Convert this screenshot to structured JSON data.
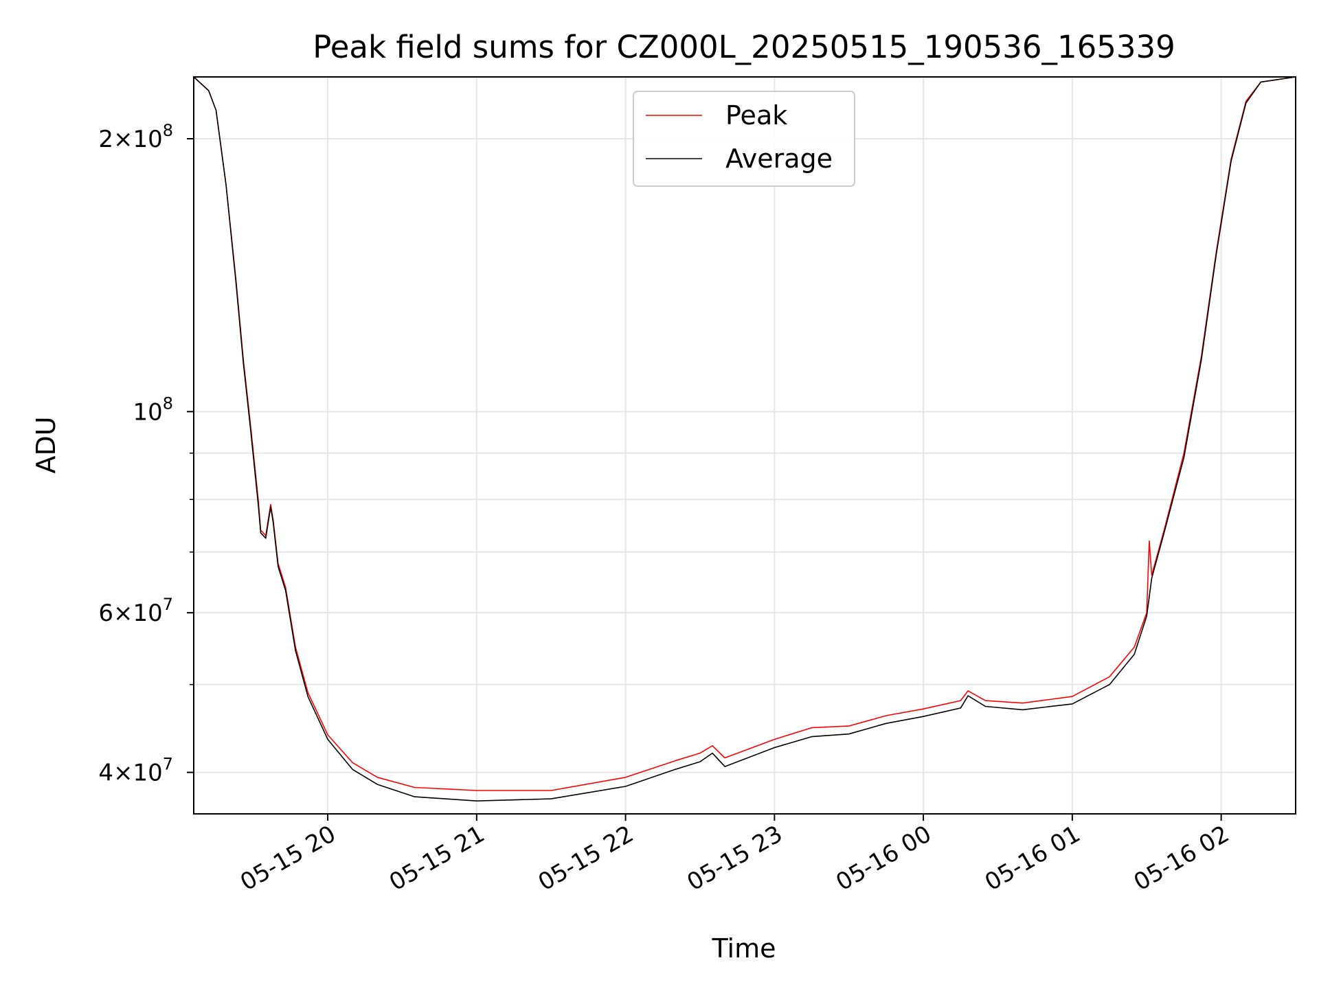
{
  "chart_data": {
    "type": "line",
    "title": "Peak field sums for CZ000L_20250515_190536_165339",
    "xlabel": "Time",
    "ylabel": "ADU",
    "y_scale": "log",
    "ylim": [
      36000000,
      234000000
    ],
    "xlim": [
      "2025-05-15 19:06",
      "2025-05-16 02:30"
    ],
    "x_ticks": [
      {
        "value": "2025-05-15 20:00",
        "label": "05-15 20"
      },
      {
        "value": "2025-05-15 21:00",
        "label": "05-15 21"
      },
      {
        "value": "2025-05-15 22:00",
        "label": "05-15 22"
      },
      {
        "value": "2025-05-15 23:00",
        "label": "05-15 23"
      },
      {
        "value": "2025-05-16 00:00",
        "label": "05-16 00"
      },
      {
        "value": "2025-05-16 01:00",
        "label": "05-16 01"
      },
      {
        "value": "2025-05-16 02:00",
        "label": "05-16 02"
      }
    ],
    "y_ticks_major": [
      {
        "value": 40000000,
        "mantissa": "4",
        "exponent": "7"
      },
      {
        "value": 60000000,
        "mantissa": "6",
        "exponent": "7"
      },
      {
        "value": 100000000,
        "mantissa": "",
        "exponent": "8"
      },
      {
        "value": 200000000,
        "mantissa": "2",
        "exponent": "8"
      }
    ],
    "y_ticks_minor": [
      50000000,
      70000000,
      80000000,
      90000000
    ],
    "grid": true,
    "legend": "upper center",
    "series": [
      {
        "name": "Peak",
        "color": "#ff0000",
        "points": [
          [
            "2025-05-15 19:06",
            234000000
          ],
          [
            "2025-05-15 19:12",
            226000000
          ],
          [
            "2025-05-15 19:15",
            215000000
          ],
          [
            "2025-05-15 19:19",
            178000000
          ],
          [
            "2025-05-15 19:23",
            140000000
          ],
          [
            "2025-05-15 19:26",
            114000000
          ],
          [
            "2025-05-15 19:29",
            96000000
          ],
          [
            "2025-05-15 19:32",
            80000000
          ],
          [
            "2025-05-15 19:33",
            74000000
          ],
          [
            "2025-05-15 19:35",
            73000000
          ],
          [
            "2025-05-15 19:37",
            79000000
          ],
          [
            "2025-05-15 19:38",
            76000000
          ],
          [
            "2025-05-15 19:40",
            68000000
          ],
          [
            "2025-05-15 19:43",
            64000000
          ],
          [
            "2025-05-15 19:47",
            55000000
          ],
          [
            "2025-05-15 19:52",
            49000000
          ],
          [
            "2025-05-15 20:00",
            44000000
          ],
          [
            "2025-05-15 20:10",
            41000000
          ],
          [
            "2025-05-15 20:20",
            39500000
          ],
          [
            "2025-05-15 20:35",
            38500000
          ],
          [
            "2025-05-15 21:00",
            38200000
          ],
          [
            "2025-05-15 21:30",
            38200000
          ],
          [
            "2025-05-15 22:00",
            39500000
          ],
          [
            "2025-05-15 22:20",
            41200000
          ],
          [
            "2025-05-15 22:30",
            42000000
          ],
          [
            "2025-05-15 22:35",
            42800000
          ],
          [
            "2025-05-15 22:40",
            41500000
          ],
          [
            "2025-05-15 23:00",
            43500000
          ],
          [
            "2025-05-15 23:15",
            44800000
          ],
          [
            "2025-05-15 23:30",
            45000000
          ],
          [
            "2025-05-15 23:45",
            46200000
          ],
          [
            "2025-05-16 00:00",
            47000000
          ],
          [
            "2025-05-16 00:15",
            48000000
          ],
          [
            "2025-05-16 00:18",
            49200000
          ],
          [
            "2025-05-16 00:25",
            48000000
          ],
          [
            "2025-05-16 00:40",
            47700000
          ],
          [
            "2025-05-16 01:00",
            48500000
          ],
          [
            "2025-05-16 01:15",
            51000000
          ],
          [
            "2025-05-16 01:25",
            55000000
          ],
          [
            "2025-05-16 01:30",
            60000000
          ],
          [
            "2025-05-16 01:31",
            72000000
          ],
          [
            "2025-05-16 01:32",
            66000000
          ],
          [
            "2025-05-16 01:37",
            74000000
          ],
          [
            "2025-05-16 01:45",
            90000000
          ],
          [
            "2025-05-16 01:52",
            115000000
          ],
          [
            "2025-05-16 01:58",
            150000000
          ],
          [
            "2025-05-16 02:04",
            190000000
          ],
          [
            "2025-05-16 02:10",
            220000000
          ],
          [
            "2025-05-16 02:16",
            231000000
          ],
          [
            "2025-05-16 02:30",
            234000000
          ]
        ]
      },
      {
        "name": "Average",
        "color": "#000000",
        "points": [
          [
            "2025-05-15 19:06",
            234000000
          ],
          [
            "2025-05-15 19:12",
            226000000
          ],
          [
            "2025-05-15 19:15",
            215000000
          ],
          [
            "2025-05-15 19:19",
            178000000
          ],
          [
            "2025-05-15 19:23",
            139000000
          ],
          [
            "2025-05-15 19:26",
            113000000
          ],
          [
            "2025-05-15 19:29",
            95000000
          ],
          [
            "2025-05-15 19:32",
            79000000
          ],
          [
            "2025-05-15 19:33",
            73500000
          ],
          [
            "2025-05-15 19:35",
            72500000
          ],
          [
            "2025-05-15 19:37",
            78500000
          ],
          [
            "2025-05-15 19:38",
            75500000
          ],
          [
            "2025-05-15 19:40",
            67500000
          ],
          [
            "2025-05-15 19:43",
            63500000
          ],
          [
            "2025-05-15 19:47",
            54500000
          ],
          [
            "2025-05-15 19:52",
            48500000
          ],
          [
            "2025-05-15 20:00",
            43500000
          ],
          [
            "2025-05-15 20:10",
            40300000
          ],
          [
            "2025-05-15 20:20",
            38800000
          ],
          [
            "2025-05-15 20:35",
            37600000
          ],
          [
            "2025-05-15 21:00",
            37200000
          ],
          [
            "2025-05-15 21:30",
            37400000
          ],
          [
            "2025-05-15 22:00",
            38600000
          ],
          [
            "2025-05-15 22:20",
            40300000
          ],
          [
            "2025-05-15 22:30",
            41100000
          ],
          [
            "2025-05-15 22:35",
            42000000
          ],
          [
            "2025-05-15 22:40",
            40600000
          ],
          [
            "2025-05-15 23:00",
            42600000
          ],
          [
            "2025-05-15 23:15",
            43800000
          ],
          [
            "2025-05-15 23:30",
            44100000
          ],
          [
            "2025-05-15 23:45",
            45300000
          ],
          [
            "2025-05-16 00:00",
            46100000
          ],
          [
            "2025-05-16 00:15",
            47100000
          ],
          [
            "2025-05-16 00:18",
            48600000
          ],
          [
            "2025-05-16 00:25",
            47300000
          ],
          [
            "2025-05-16 00:40",
            46900000
          ],
          [
            "2025-05-16 01:00",
            47600000
          ],
          [
            "2025-05-16 01:15",
            50000000
          ],
          [
            "2025-05-16 01:25",
            54000000
          ],
          [
            "2025-05-16 01:30",
            59500000
          ],
          [
            "2025-05-16 01:32",
            65500000
          ],
          [
            "2025-05-16 01:37",
            73500000
          ],
          [
            "2025-05-16 01:45",
            89000000
          ],
          [
            "2025-05-16 01:52",
            114000000
          ],
          [
            "2025-05-16 01:58",
            149000000
          ],
          [
            "2025-05-16 02:04",
            189000000
          ],
          [
            "2025-05-16 02:10",
            219000000
          ],
          [
            "2025-05-16 02:16",
            231000000
          ],
          [
            "2025-05-16 02:30",
            234000000
          ]
        ]
      }
    ]
  }
}
